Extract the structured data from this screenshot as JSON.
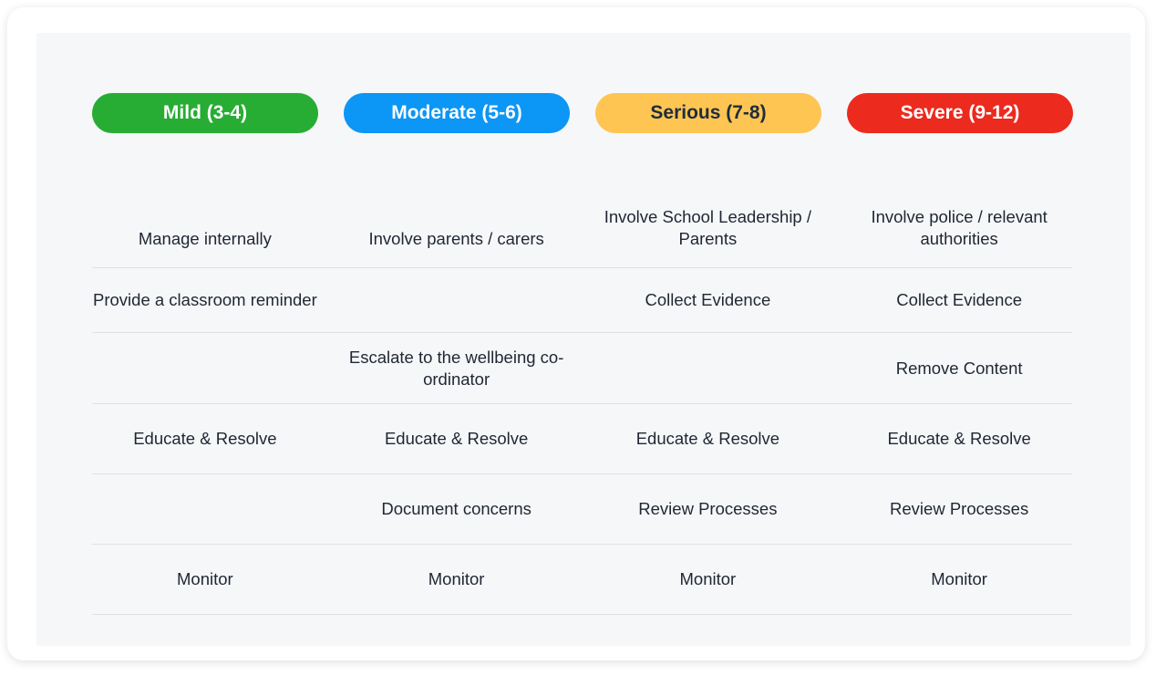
{
  "levels": [
    {
      "label": "Mild (3-4)",
      "color": "#27ad33",
      "text_color": "#ffffff"
    },
    {
      "label": "Moderate (5-6)",
      "color": "#0c96f5",
      "text_color": "#ffffff"
    },
    {
      "label": "Serious (7-8)",
      "color": "#fec553",
      "text_color": "#1f2d3d"
    },
    {
      "label": "Severe (9-12)",
      "color": "#ec2a1e",
      "text_color": "#ffffff"
    }
  ],
  "rows": [
    [
      "Manage internally",
      "Involve parents / carers",
      "Involve School Leadership / Parents",
      "Involve police / relevant authorities"
    ],
    [
      "Provide a classroom reminder",
      "",
      "Collect Evidence",
      "Collect Evidence"
    ],
    [
      "",
      "Escalate to the wellbeing co-ordinator",
      "",
      "Remove Content"
    ],
    [
      "Educate & Resolve",
      "Educate & Resolve",
      "Educate & Resolve",
      "Educate & Resolve"
    ],
    [
      "",
      "Document concerns",
      "Review Processes",
      "Review Processes"
    ],
    [
      "Monitor",
      "Monitor",
      "Monitor",
      "Monitor"
    ]
  ]
}
